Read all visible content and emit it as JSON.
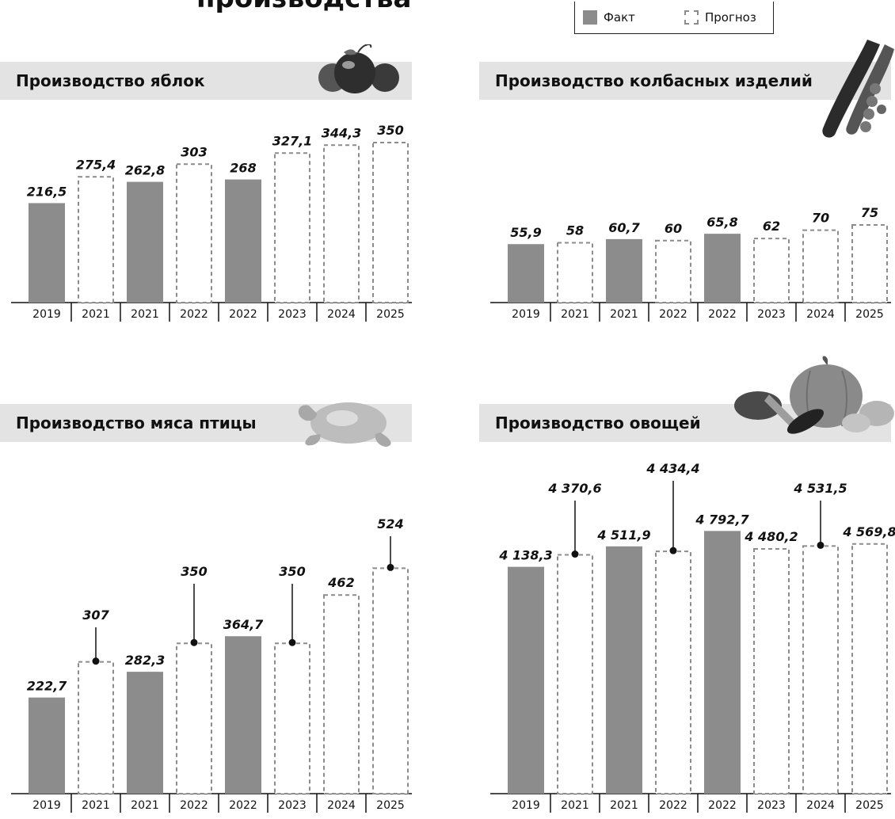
{
  "page": {
    "title_fragment": "производства"
  },
  "legend": [
    {
      "key": "fact",
      "label": "Факт",
      "color": "#8c8c8c"
    },
    {
      "key": "forecast",
      "label": "Прогноз",
      "color": "#8c8c8c"
    }
  ],
  "panels": [
    {
      "title": "Производство яблок",
      "picture": "apples-icon"
    },
    {
      "title": "Производство колбасных изделий",
      "picture": "sausages-icon"
    },
    {
      "title": "Производство мяса птицы",
      "picture": "chicken-icon"
    },
    {
      "title": "Производство овощей",
      "picture": "vegetables-icon"
    }
  ],
  "chart_data": [
    {
      "type": "bar",
      "title": "Производство яблок",
      "categories": [
        "2019",
        "2021",
        "2021",
        "2022",
        "2022",
        "2023",
        "2024",
        "2025"
      ],
      "series": [
        {
          "values": [
            216.5,
            275.4,
            262.8,
            303,
            268,
            327.1,
            344.3,
            350
          ]
        }
      ],
      "labels": [
        "216,5",
        "275,4",
        "262,8",
        "303",
        "268",
        "327,1",
        "344,3",
        "350"
      ],
      "kinds": [
        "fact",
        "forecast",
        "fact",
        "forecast",
        "fact",
        "forecast",
        "forecast",
        "forecast"
      ],
      "leaders": [
        false,
        false,
        false,
        false,
        false,
        false,
        false,
        false
      ],
      "ylim": [
        0,
        400
      ]
    },
    {
      "type": "bar",
      "title": "Производство колбасных изделий",
      "categories": [
        "2019",
        "2021",
        "2021",
        "2022",
        "2022",
        "2023",
        "2024",
        "2025"
      ],
      "series": [
        {
          "values": [
            55.9,
            58,
            60.7,
            60,
            65.8,
            62,
            70,
            75
          ]
        }
      ],
      "labels": [
        "55,9",
        "58",
        "60,7",
        "60",
        "65,8",
        "62",
        "70",
        "75"
      ],
      "kinds": [
        "fact",
        "forecast",
        "fact",
        "forecast",
        "fact",
        "forecast",
        "forecast",
        "forecast"
      ],
      "leaders": [
        false,
        false,
        false,
        false,
        false,
        false,
        false,
        false
      ],
      "ylim": [
        0,
        200
      ]
    },
    {
      "type": "bar",
      "title": "Производство мяса птицы",
      "categories": [
        "2019",
        "2021",
        "2021",
        "2022",
        "2022",
        "2023",
        "2024",
        "2025"
      ],
      "series": [
        {
          "values": [
            222.7,
            307,
            282.3,
            350,
            364.7,
            350,
            462,
            524
          ]
        }
      ],
      "labels": [
        "222,7",
        "307",
        "282,3",
        "350",
        "364,7",
        "350",
        "462",
        "524"
      ],
      "kinds": [
        "fact",
        "forecast",
        "fact",
        "forecast",
        "fact",
        "forecast",
        "forecast",
        "forecast"
      ],
      "leaders": [
        false,
        true,
        false,
        true,
        false,
        true,
        false,
        true
      ],
      "ylim": [
        0,
        1000
      ]
    },
    {
      "type": "bar",
      "title": "Производство овощей",
      "categories": [
        "2019",
        "2021",
        "2021",
        "2022",
        "2022",
        "2023",
        "2024",
        "2025"
      ],
      "series": [
        {
          "values": [
            4138.3,
            4370.6,
            4511.9,
            4434.4,
            4792.7,
            4480.2,
            4531.5,
            4569.8
          ]
        }
      ],
      "labels": [
        "4 138,3",
        "4 370,6",
        "4 511,9",
        "4 434,4",
        "4 792,7",
        "4 480,2",
        "4 531,5",
        "4 569,8"
      ],
      "kinds": [
        "fact",
        "forecast",
        "fact",
        "forecast",
        "fact",
        "forecast",
        "forecast",
        "forecast"
      ],
      "leaders": [
        false,
        true,
        false,
        true,
        false,
        false,
        true,
        false
      ],
      "ylim": [
        0,
        5500
      ]
    }
  ]
}
